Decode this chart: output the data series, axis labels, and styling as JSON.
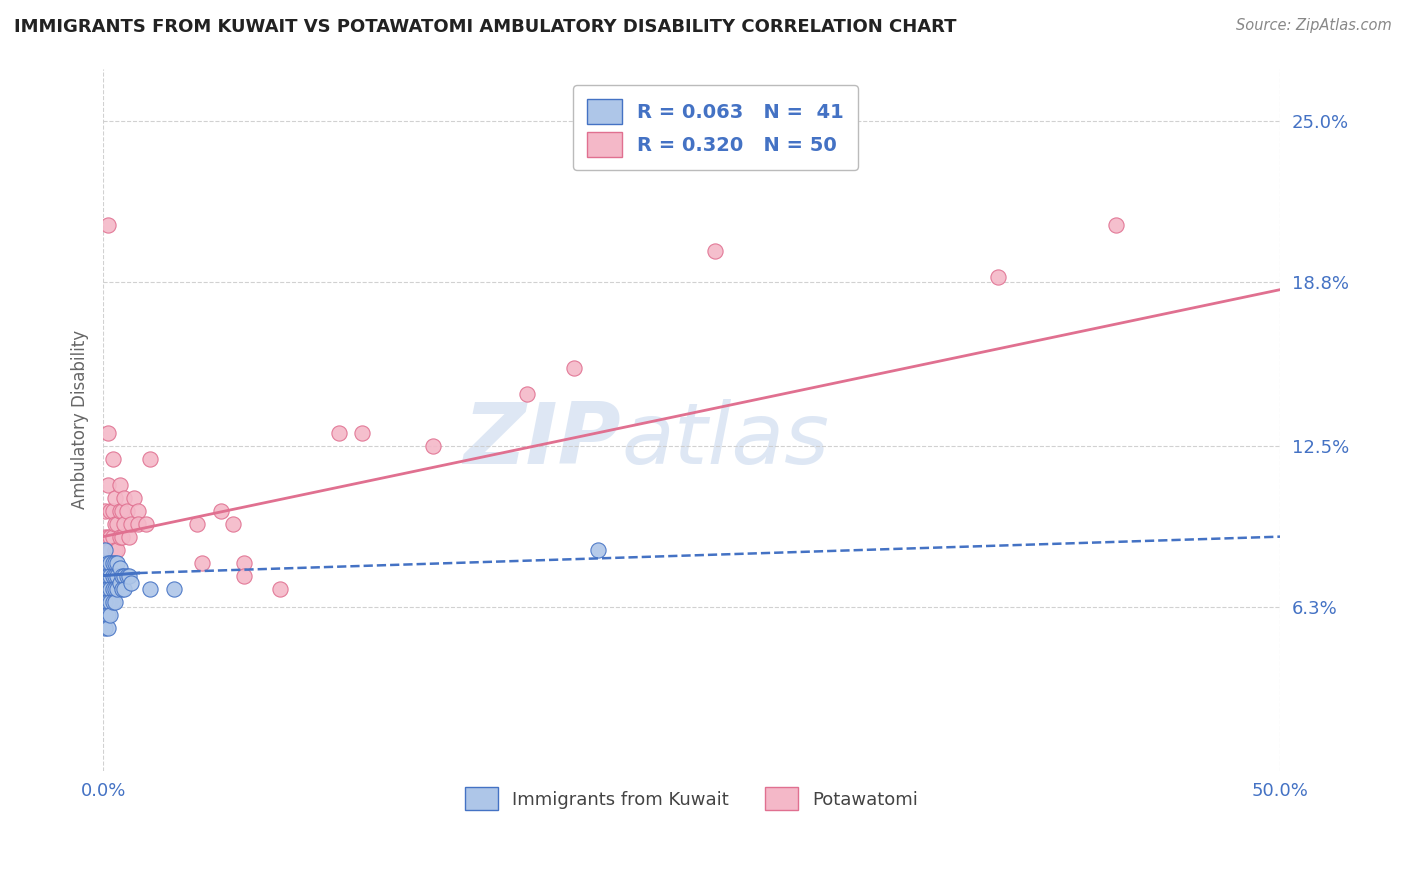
{
  "title": "IMMIGRANTS FROM KUWAIT VS POTAWATOMI AMBULATORY DISABILITY CORRELATION CHART",
  "source": "Source: ZipAtlas.com",
  "ylabel": "Ambulatory Disability",
  "xlim": [
    0.0,
    0.5
  ],
  "ylim": [
    0.0,
    0.27
  ],
  "yticks": [
    0.063,
    0.125,
    0.188,
    0.25
  ],
  "ytick_labels": [
    "6.3%",
    "12.5%",
    "18.8%",
    "25.0%"
  ],
  "xticks": [
    0.0,
    0.5
  ],
  "xtick_labels": [
    "0.0%",
    "50.0%"
  ],
  "legend_r1": "R = 0.063",
  "legend_n1": "N =  41",
  "legend_r2": "R = 0.320",
  "legend_n2": "N = 50",
  "color_blue_fill": "#aec6e8",
  "color_blue_edge": "#4472c4",
  "color_pink_fill": "#f4b8c8",
  "color_pink_edge": "#e07090",
  "color_blue_line": "#4472c4",
  "color_pink_line": "#e07090",
  "watermark_color": "#c8d8ee",
  "background_color": "#ffffff",
  "grid_color": "#cccccc",
  "title_color": "#222222",
  "axis_label_color": "#666666",
  "tick_color": "#4472c4",
  "blue_scatter_x": [
    0.001,
    0.001,
    0.001,
    0.001,
    0.001,
    0.001,
    0.001,
    0.002,
    0.002,
    0.002,
    0.002,
    0.002,
    0.002,
    0.003,
    0.003,
    0.003,
    0.003,
    0.003,
    0.004,
    0.004,
    0.004,
    0.004,
    0.005,
    0.005,
    0.005,
    0.005,
    0.006,
    0.006,
    0.006,
    0.007,
    0.007,
    0.008,
    0.008,
    0.009,
    0.009,
    0.01,
    0.011,
    0.012,
    0.02,
    0.03,
    0.21
  ],
  "blue_scatter_y": [
    0.075,
    0.08,
    0.085,
    0.07,
    0.065,
    0.06,
    0.055,
    0.08,
    0.075,
    0.07,
    0.065,
    0.06,
    0.055,
    0.08,
    0.075,
    0.07,
    0.065,
    0.06,
    0.08,
    0.075,
    0.07,
    0.065,
    0.08,
    0.075,
    0.07,
    0.065,
    0.08,
    0.075,
    0.07,
    0.078,
    0.072,
    0.075,
    0.07,
    0.075,
    0.07,
    0.075,
    0.075,
    0.072,
    0.07,
    0.07,
    0.085
  ],
  "pink_scatter_x": [
    0.001,
    0.001,
    0.001,
    0.001,
    0.002,
    0.002,
    0.002,
    0.002,
    0.003,
    0.003,
    0.003,
    0.003,
    0.004,
    0.004,
    0.004,
    0.005,
    0.005,
    0.005,
    0.006,
    0.006,
    0.007,
    0.007,
    0.007,
    0.008,
    0.008,
    0.009,
    0.009,
    0.01,
    0.011,
    0.012,
    0.013,
    0.015,
    0.015,
    0.018,
    0.02,
    0.04,
    0.042,
    0.05,
    0.055,
    0.06,
    0.06,
    0.075,
    0.1,
    0.11,
    0.14,
    0.18,
    0.2,
    0.26,
    0.38,
    0.43
  ],
  "pink_scatter_y": [
    0.1,
    0.09,
    0.08,
    0.075,
    0.21,
    0.13,
    0.11,
    0.09,
    0.1,
    0.09,
    0.085,
    0.08,
    0.12,
    0.1,
    0.09,
    0.105,
    0.095,
    0.085,
    0.095,
    0.085,
    0.11,
    0.1,
    0.09,
    0.1,
    0.09,
    0.105,
    0.095,
    0.1,
    0.09,
    0.095,
    0.105,
    0.1,
    0.095,
    0.095,
    0.12,
    0.095,
    0.08,
    0.1,
    0.095,
    0.08,
    0.075,
    0.07,
    0.13,
    0.13,
    0.125,
    0.145,
    0.155,
    0.2,
    0.19,
    0.21
  ],
  "blue_trend_x": [
    0.0,
    0.5
  ],
  "blue_trend_y": [
    0.075,
    0.09
  ],
  "pink_trend_x": [
    0.0,
    0.5
  ],
  "pink_trend_y": [
    0.09,
    0.185
  ]
}
